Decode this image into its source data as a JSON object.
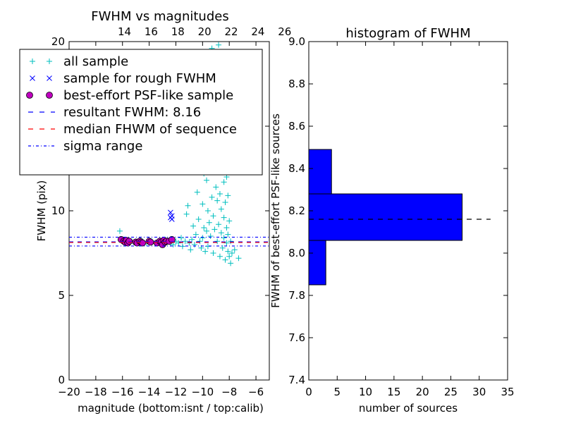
{
  "chart_data": [
    {
      "type": "scatter",
      "title": "FWHM vs magnitudes",
      "xlabel": "magnitude (bottom:isnt / top:calib)",
      "ylabel": "FWHM (pix)",
      "xlim": [
        -20,
        -5
      ],
      "ylim": [
        0,
        20
      ],
      "xticks": [
        "−20",
        "−18",
        "−16",
        "−14",
        "−12",
        "−10",
        "−8",
        "−6"
      ],
      "xtick_values": [
        -20,
        -18,
        -16,
        -14,
        -12,
        -10,
        -8,
        -6
      ],
      "yticks": [
        "0",
        "5",
        "10",
        "15",
        "20"
      ],
      "ytick_values": [
        0,
        5,
        10,
        15,
        20
      ],
      "top_axis": {
        "ticks": [
          "14",
          "16",
          "18",
          "20",
          "22",
          "24",
          "26"
        ],
        "tick_values": [
          -15.85,
          -13.85,
          -11.85,
          -9.85,
          -7.85,
          -5.85,
          -3.85
        ]
      },
      "grid": false,
      "legend_placement": "upper-left",
      "legend": [
        {
          "label": "all sample",
          "marker": "plus",
          "color": "#00bfbf"
        },
        {
          "label": "sample for rough FWHM",
          "marker": "x",
          "color": "#0000ff"
        },
        {
          "label": "best-effort PSF-like sample",
          "marker": "circle",
          "color": "#bf00bf"
        },
        {
          "label": "resultant FWHM: 8.16",
          "marker": "dash",
          "color": "#0000ff"
        },
        {
          "label": "median FHWM of sequence",
          "marker": "dash",
          "color": "#ff0000"
        },
        {
          "label": "sigma range",
          "marker": "dashdot",
          "color": "#0000ff"
        }
      ],
      "series": [
        {
          "name": "all sample",
          "marker": "plus",
          "color": "#00bfbf",
          "points": [
            [
              -16.2,
              8.8
            ],
            [
              -16.0,
              8.3
            ],
            [
              -15.9,
              8.2
            ],
            [
              -15.6,
              8.1
            ],
            [
              -15.3,
              8.2
            ],
            [
              -15.0,
              8.2
            ],
            [
              -14.8,
              8.1
            ],
            [
              -14.5,
              8.2
            ],
            [
              -14.2,
              8.1
            ],
            [
              -14.0,
              8.2
            ],
            [
              -13.8,
              8.2
            ],
            [
              -13.5,
              8.1
            ],
            [
              -13.2,
              8.2
            ],
            [
              -13.0,
              8.1
            ],
            [
              -12.8,
              8.3
            ],
            [
              -12.6,
              8.2
            ],
            [
              -12.4,
              8.1
            ],
            [
              -12.2,
              8.0
            ],
            [
              -12.0,
              8.2
            ],
            [
              -11.8,
              8.1
            ],
            [
              -11.6,
              8.4
            ],
            [
              -11.5,
              7.9
            ],
            [
              -11.3,
              8.2
            ],
            [
              -11.2,
              9.8
            ],
            [
              -11.1,
              10.3
            ],
            [
              -11.0,
              8.1
            ],
            [
              -10.9,
              7.7
            ],
            [
              -10.8,
              8.3
            ],
            [
              -10.7,
              9.1
            ],
            [
              -10.6,
              8.0
            ],
            [
              -10.5,
              8.6
            ],
            [
              -10.4,
              11.1
            ],
            [
              -10.3,
              9.5
            ],
            [
              -10.2,
              8.2
            ],
            [
              -10.1,
              7.8
            ],
            [
              -10.0,
              10.4
            ],
            [
              -10.0,
              8.4
            ],
            [
              -9.9,
              12.2
            ],
            [
              -9.9,
              9.0
            ],
            [
              -9.8,
              7.6
            ],
            [
              -9.8,
              13.1
            ],
            [
              -9.7,
              8.8
            ],
            [
              -9.7,
              11.8
            ],
            [
              -9.6,
              10.0
            ],
            [
              -9.6,
              7.9
            ],
            [
              -9.5,
              14.3
            ],
            [
              -9.5,
              9.3
            ],
            [
              -9.4,
              12.6
            ],
            [
              -9.4,
              8.5
            ],
            [
              -9.3,
              10.8
            ],
            [
              -9.3,
              15.2
            ],
            [
              -9.2,
              7.5
            ],
            [
              -9.2,
              9.7
            ],
            [
              -9.1,
              13.5
            ],
            [
              -9.1,
              8.9
            ],
            [
              -9.0,
              11.4
            ],
            [
              -9.0,
              14.8
            ],
            [
              -8.9,
              8.2
            ],
            [
              -8.9,
              10.6
            ],
            [
              -8.9,
              16.0
            ],
            [
              -8.8,
              12.9
            ],
            [
              -8.8,
              9.2
            ],
            [
              -8.7,
              7.3
            ],
            [
              -8.7,
              11.0
            ],
            [
              -8.7,
              15.6
            ],
            [
              -8.6,
              13.8
            ],
            [
              -8.6,
              8.7
            ],
            [
              -8.6,
              10.1
            ],
            [
              -8.5,
              12.3
            ],
            [
              -8.5,
              7.8
            ],
            [
              -8.5,
              14.1
            ],
            [
              -8.4,
              9.6
            ],
            [
              -8.4,
              11.7
            ],
            [
              -8.4,
              8.4
            ],
            [
              -8.3,
              10.5
            ],
            [
              -8.3,
              7.1
            ],
            [
              -8.3,
              13.2
            ],
            [
              -8.2,
              9.0
            ],
            [
              -8.2,
              8.1
            ],
            [
              -8.2,
              12.0
            ],
            [
              -8.1,
              7.6
            ],
            [
              -8.1,
              10.9
            ],
            [
              -8.1,
              8.6
            ],
            [
              -8.0,
              7.3
            ],
            [
              -8.0,
              9.4
            ],
            [
              -7.9,
              6.9
            ],
            [
              -7.9,
              8.2
            ],
            [
              -7.8,
              7.5
            ],
            [
              -7.6,
              7.7
            ],
            [
              -7.3,
              7.2
            ],
            [
              -9.6,
              18.5
            ],
            [
              -9.3,
              19.6
            ],
            [
              -8.8,
              19.8
            ],
            [
              -9.9,
              17.4
            ],
            [
              -8.5,
              18.1
            ],
            [
              -9.0,
              16.9
            ],
            [
              -10.2,
              15.3
            ],
            [
              -8.3,
              16.4
            ],
            [
              -9.4,
              17.8
            ],
            [
              -8.9,
              19.2
            ]
          ]
        },
        {
          "name": "sample for rough FWHM",
          "marker": "x",
          "color": "#0000ff",
          "points": [
            [
              -12.4,
              9.9
            ],
            [
              -12.4,
              9.6
            ],
            [
              -12.3,
              9.7
            ],
            [
              -12.3,
              9.5
            ]
          ]
        },
        {
          "name": "best-effort PSF-like sample",
          "marker": "circle",
          "color": "#bf00bf",
          "points": [
            [
              -16.1,
              8.3
            ],
            [
              -15.9,
              8.2
            ],
            [
              -15.8,
              8.15
            ],
            [
              -15.7,
              8.25
            ],
            [
              -15.6,
              8.1
            ],
            [
              -15.5,
              8.2
            ],
            [
              -15.0,
              8.15
            ],
            [
              -14.9,
              8.1
            ],
            [
              -14.7,
              8.2
            ],
            [
              -14.6,
              8.15
            ],
            [
              -14.5,
              8.1
            ],
            [
              -14.0,
              8.2
            ],
            [
              -13.9,
              8.15
            ],
            [
              -13.4,
              8.1
            ],
            [
              -13.2,
              8.2
            ],
            [
              -13.1,
              8.15
            ],
            [
              -13.0,
              8.0
            ],
            [
              -12.9,
              8.25
            ],
            [
              -12.8,
              8.15
            ],
            [
              -12.7,
              8.2
            ],
            [
              -12.5,
              8.2
            ],
            [
              -12.3,
              8.3
            ]
          ]
        }
      ],
      "hlines": [
        {
          "name": "resultant FWHM: 8.16",
          "y": 8.16,
          "style": "dashed",
          "color": "#0000ff"
        },
        {
          "name": "median FHWM of sequence",
          "y": 8.16,
          "style": "dashed",
          "color": "#ff0000"
        },
        {
          "name": "sigma range",
          "y": 8.44,
          "style": "dashdot",
          "color": "#0000ff"
        },
        {
          "name": "sigma range",
          "y": 7.92,
          "style": "dashdot",
          "color": "#0000ff"
        }
      ]
    },
    {
      "type": "bar",
      "orientation": "horizontal",
      "title": "histogram of FWHM",
      "xlabel": "number of sources",
      "ylabel": "FWHM of best-effort PSF-like sources",
      "xlim": [
        0,
        35
      ],
      "ylim": [
        7.4,
        9.0
      ],
      "xticks": [
        "0",
        "5",
        "10",
        "15",
        "20",
        "25",
        "30",
        "35"
      ],
      "xtick_values": [
        0,
        5,
        10,
        15,
        20,
        25,
        30,
        35
      ],
      "yticks": [
        "7.4",
        "7.6",
        "7.8",
        "8.0",
        "8.2",
        "8.4",
        "8.6",
        "8.8",
        "9.0"
      ],
      "ytick_values": [
        7.4,
        7.6,
        7.8,
        8.0,
        8.2,
        8.4,
        8.6,
        8.8,
        9.0
      ],
      "grid": false,
      "bar_color": "#0000ff",
      "bins": [
        {
          "from": 7.85,
          "to": 8.06,
          "count": 3
        },
        {
          "from": 8.06,
          "to": 8.28,
          "count": 27
        },
        {
          "from": 8.28,
          "to": 8.49,
          "count": 4
        }
      ],
      "reference_line": {
        "y": 8.16,
        "style": "dashed",
        "color": "#000000",
        "x_to": 32
      }
    }
  ]
}
